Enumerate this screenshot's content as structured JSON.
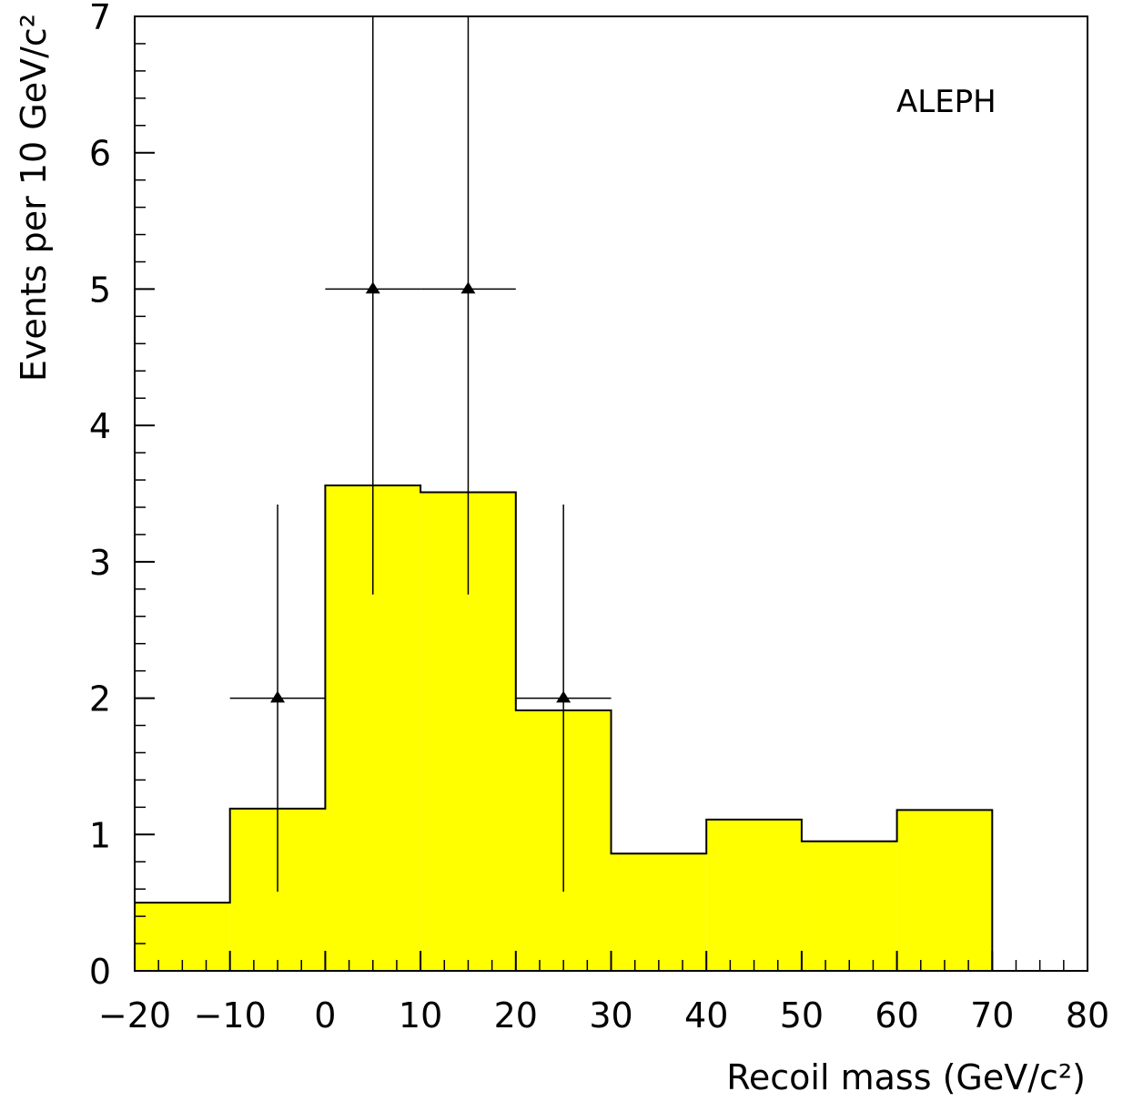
{
  "chart_data": {
    "type": "histogram",
    "annotation": "ALEPH",
    "xlabel": "Recoil mass (GeV/c²)",
    "ylabel": "Events per 10 GeV/c²",
    "xlim": [
      -20,
      80
    ],
    "ylim": [
      0,
      7
    ],
    "x_ticks": [
      -20,
      -10,
      0,
      10,
      20,
      30,
      40,
      50,
      60,
      70,
      80
    ],
    "x_tick_labels": [
      "−20",
      "−10",
      "0",
      "10",
      "20",
      "30",
      "40",
      "50",
      "60",
      "70",
      "80"
    ],
    "y_ticks": [
      0,
      1,
      2,
      3,
      4,
      5,
      6,
      7
    ],
    "y_tick_labels": [
      "0",
      "1",
      "2",
      "3",
      "4",
      "5",
      "6",
      "7"
    ],
    "grid": false,
    "fill_color": "#ffff00",
    "line_color": "#000000",
    "histogram": {
      "bin_edges": [
        -20,
        -10,
        0,
        10,
        20,
        30,
        40,
        50,
        60,
        70
      ],
      "values": [
        0.5,
        1.19,
        3.56,
        3.51,
        1.91,
        0.86,
        1.11,
        0.95,
        1.18
      ]
    },
    "data_points": [
      {
        "x": -5,
        "y": 2,
        "xerr": 5,
        "y_low": 0.58,
        "y_high": 3.42
      },
      {
        "x": 5,
        "y": 5,
        "xerr": 5,
        "y_low": 2.76,
        "y_high": 7.0
      },
      {
        "x": 15,
        "y": 5,
        "xerr": 5,
        "y_low": 2.76,
        "y_high": 7.0
      },
      {
        "x": 25,
        "y": 2,
        "xerr": 5,
        "y_low": 0.58,
        "y_high": 3.42
      }
    ]
  }
}
